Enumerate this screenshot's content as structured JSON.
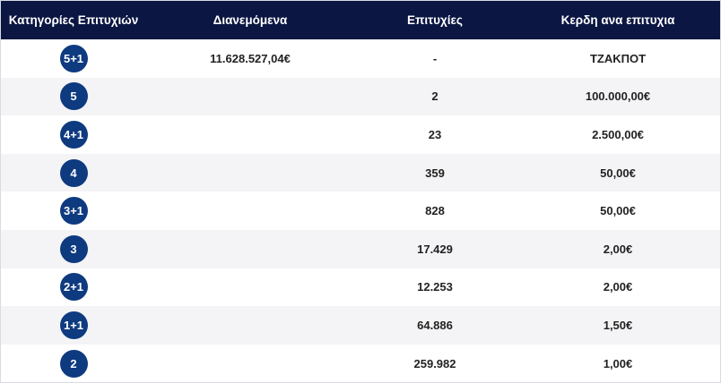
{
  "header": {
    "categories": "Κατηγορίες Επιτυχιών",
    "distributed": "Διανεμόμενα",
    "winners": "Επιτυχίες",
    "prize": "Κερδη ανα επιτυχια"
  },
  "rows": [
    {
      "category": "5+1",
      "distributed": "11.628.527,04€",
      "winners": "-",
      "prize": "ΤΖΑΚΠΟΤ"
    },
    {
      "category": "5",
      "distributed": "",
      "winners": "2",
      "prize": "100.000,00€"
    },
    {
      "category": "4+1",
      "distributed": "",
      "winners": "23",
      "prize": "2.500,00€"
    },
    {
      "category": "4",
      "distributed": "",
      "winners": "359",
      "prize": "50,00€"
    },
    {
      "category": "3+1",
      "distributed": "",
      "winners": "828",
      "prize": "50,00€"
    },
    {
      "category": "3",
      "distributed": "",
      "winners": "17.429",
      "prize": "2,00€"
    },
    {
      "category": "2+1",
      "distributed": "",
      "winners": "12.253",
      "prize": "2,00€"
    },
    {
      "category": "1+1",
      "distributed": "",
      "winners": "64.886",
      "prize": "1,50€"
    },
    {
      "category": "2",
      "distributed": "",
      "winners": "259.982",
      "prize": "1,00€"
    }
  ]
}
